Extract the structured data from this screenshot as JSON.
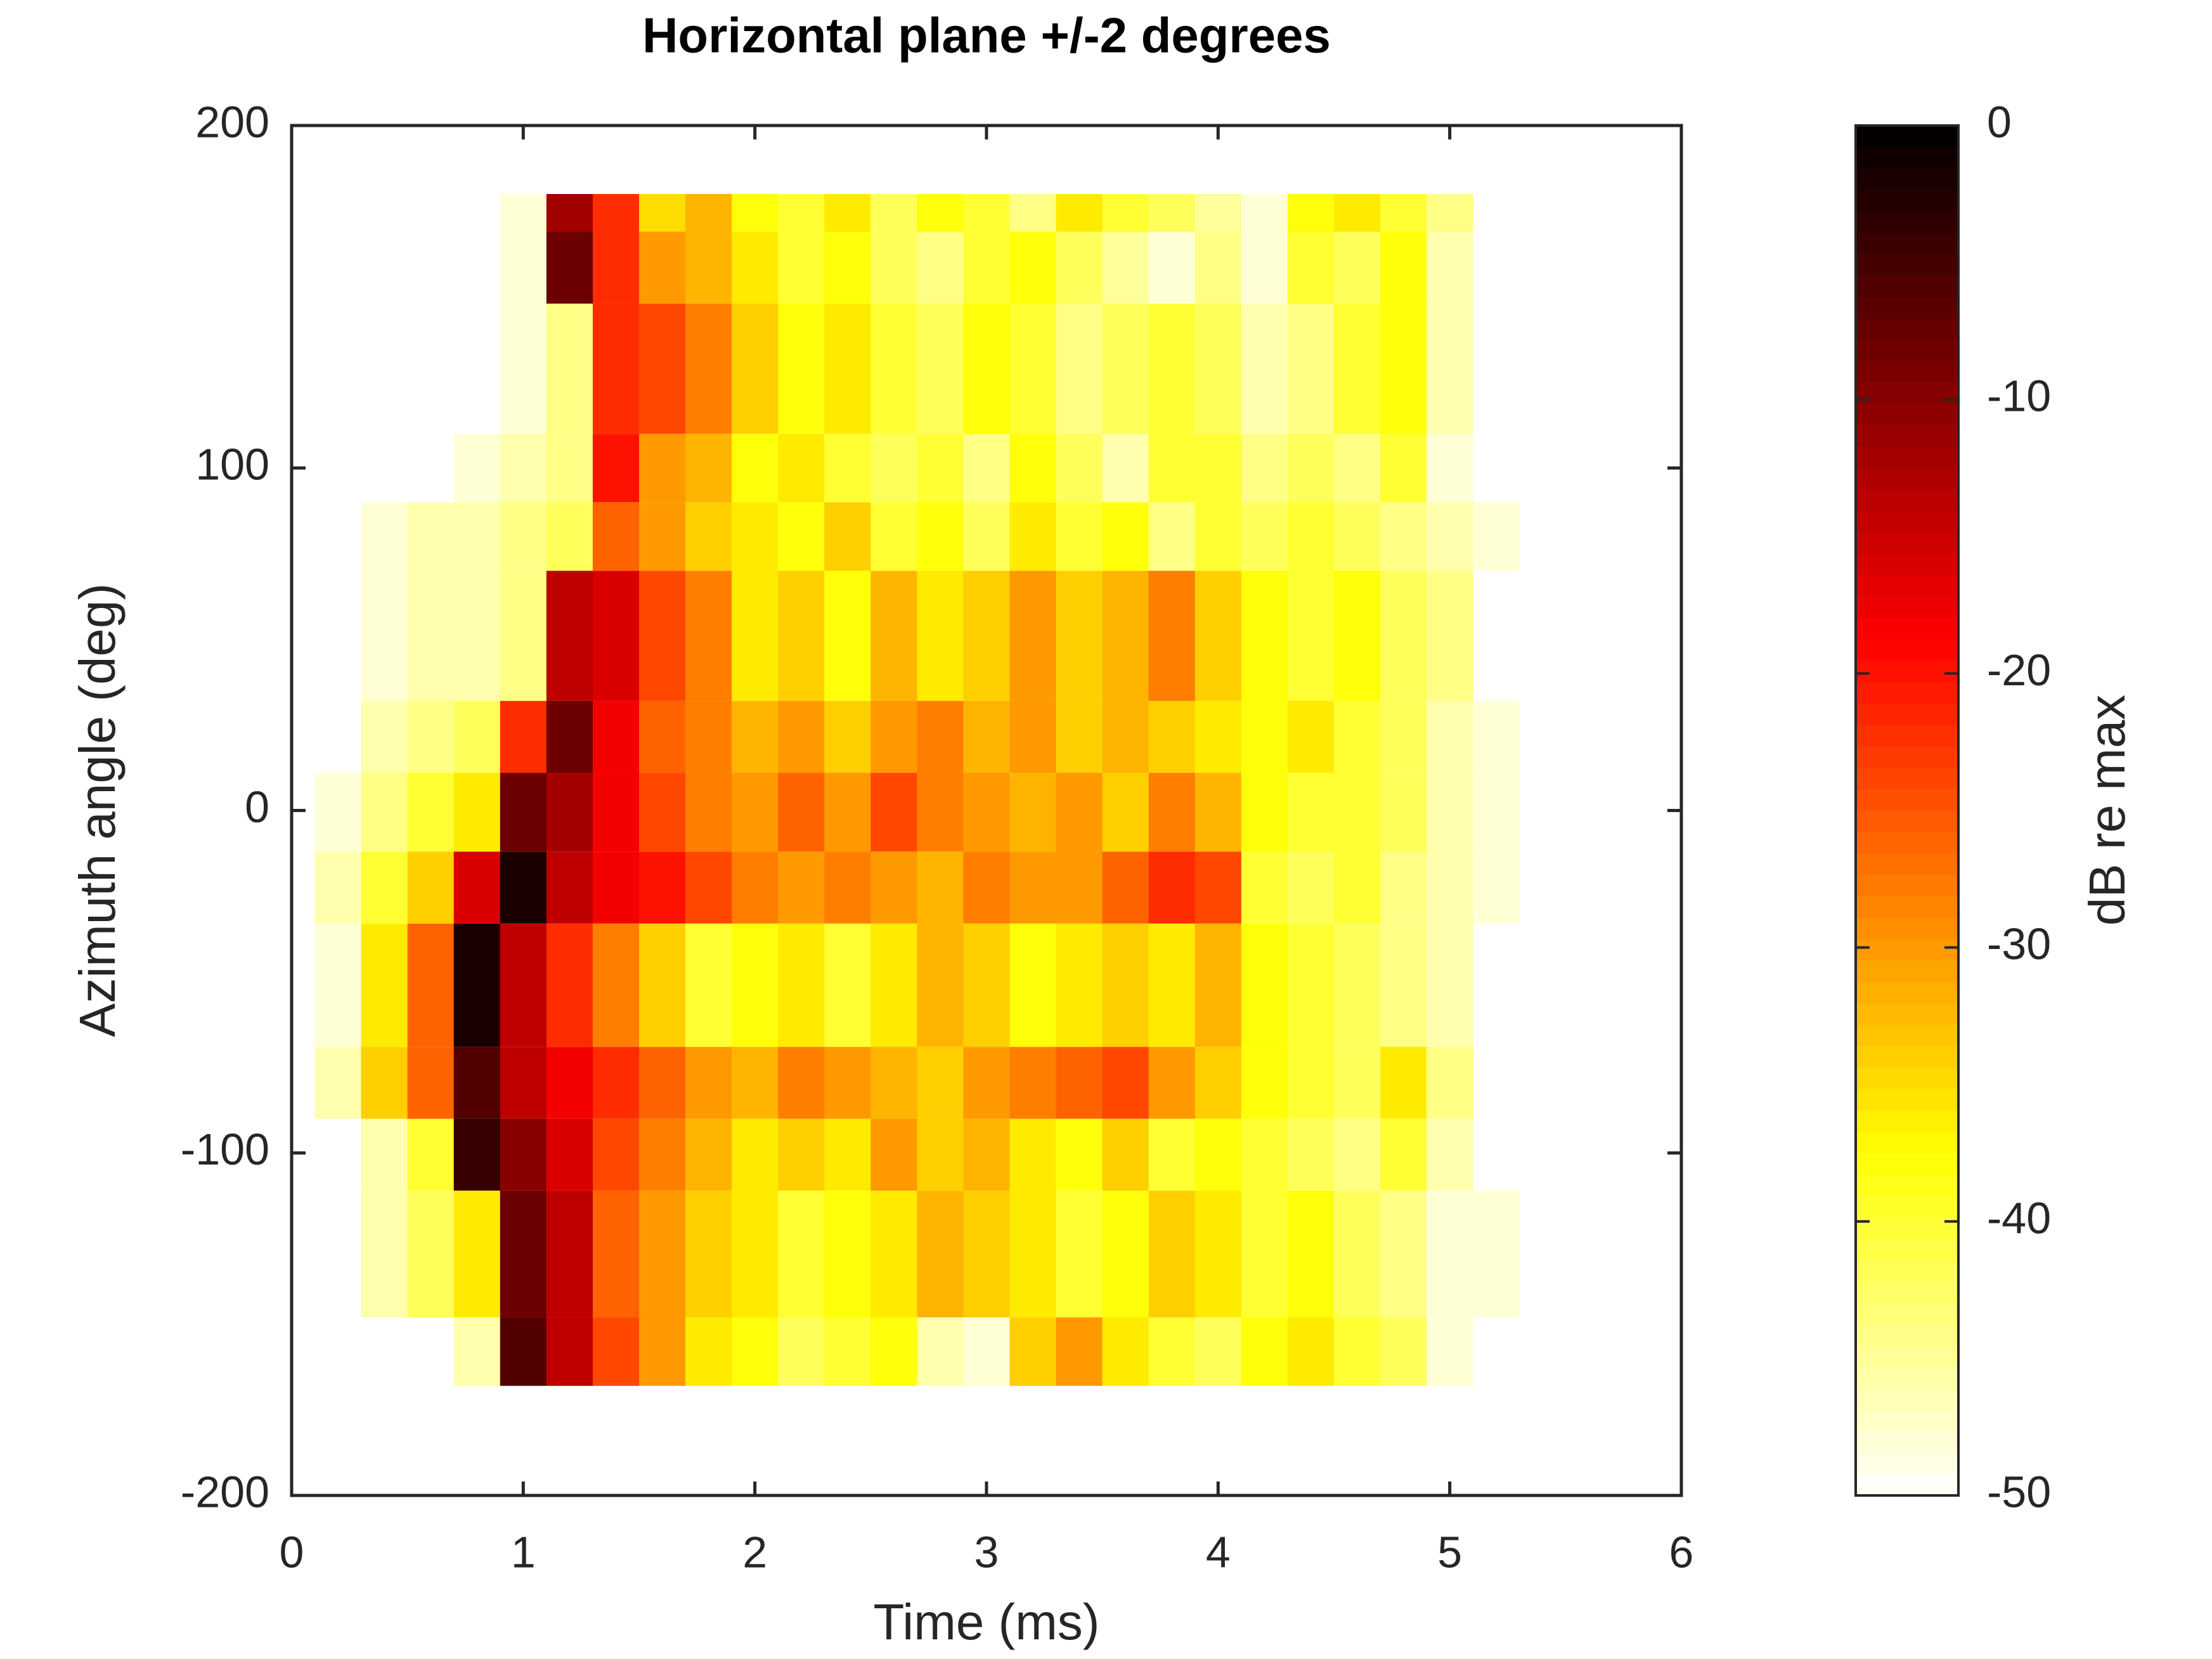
{
  "chart_data": {
    "type": "heatmap",
    "title": "Horizontal plane +/-2 degrees",
    "xlabel": "Time (ms)",
    "ylabel": "Azimuth angle (deg)",
    "colorbar_label": "dB re max",
    "colormap": "hot",
    "xlim": [
      0,
      6
    ],
    "xticks": [
      0,
      1,
      2,
      3,
      4,
      5,
      6
    ],
    "ylim": [
      -200,
      200
    ],
    "yticks": [
      -200,
      -100,
      0,
      100,
      200
    ],
    "clim": [
      -50,
      0
    ],
    "cticks": [
      0,
      -10,
      -20,
      -30,
      -40,
      -50
    ],
    "x_edges": [
      0.1,
      0.3,
      0.5,
      0.7,
      0.9,
      1.1,
      1.3,
      1.5,
      1.7,
      1.9,
      2.1,
      2.3,
      2.5,
      2.7,
      2.9,
      3.1,
      3.3,
      3.5,
      3.7,
      3.9,
      4.1,
      4.3,
      4.5,
      4.7,
      4.9,
      5.1,
      5.3
    ],
    "y_edges": [
      -168,
      -148,
      -111,
      -90,
      -69,
      -33,
      -12,
      11,
      32,
      70,
      90,
      110,
      148,
      169,
      180
    ],
    "values": [
      [
        null,
        null,
        null,
        -46,
        -6,
        -14,
        -24,
        -30,
        -36,
        -38,
        -42,
        -40,
        -38,
        -46,
        -48,
        -34,
        -30,
        -36,
        -40,
        -42,
        -38,
        -36,
        -40,
        -42,
        -48,
        null
      ],
      [
        null,
        -46,
        -42,
        -36,
        -8,
        -14,
        -26,
        -30,
        -34,
        -36,
        -40,
        -38,
        -36,
        -32,
        -34,
        -36,
        -40,
        -38,
        -34,
        -36,
        -40,
        -38,
        -42,
        -44,
        -48,
        -48
      ],
      [
        null,
        -46,
        -40,
        -4,
        -10,
        -16,
        -24,
        -28,
        -32,
        -36,
        -34,
        -36,
        -30,
        -34,
        -32,
        -36,
        -38,
        -34,
        -40,
        -38,
        -40,
        -42,
        -44,
        -40,
        -46,
        null
      ],
      [
        -46,
        -34,
        -26,
        -6,
        -14,
        -18,
        -22,
        -26,
        -30,
        -32,
        -28,
        -30,
        -32,
        -34,
        -30,
        -28,
        -26,
        -24,
        -30,
        -34,
        -38,
        -40,
        -42,
        -36,
        -44,
        null
      ],
      [
        -48,
        -36,
        -26,
        -2,
        -14,
        -22,
        -28,
        -34,
        -40,
        -38,
        -36,
        -40,
        -36,
        -32,
        -34,
        -38,
        -36,
        -34,
        -36,
        -32,
        -38,
        -40,
        -42,
        -44,
        -46,
        null
      ],
      [
        -46,
        -40,
        -34,
        -16,
        -2,
        -14,
        -18,
        -20,
        -24,
        -28,
        -30,
        -28,
        -30,
        -32,
        -28,
        -30,
        -30,
        -26,
        -22,
        -24,
        -40,
        -42,
        -40,
        -44,
        -46,
        -48
      ],
      [
        -48,
        -44,
        -40,
        -36,
        -8,
        -12,
        -18,
        -24,
        -28,
        -30,
        -26,
        -30,
        -24,
        -28,
        -30,
        -32,
        -30,
        -34,
        -28,
        -32,
        -38,
        -40,
        -40,
        -42,
        -46,
        -48
      ],
      [
        null,
        -46,
        -44,
        -42,
        -22,
        -8,
        -18,
        -26,
        -28,
        -32,
        -30,
        -34,
        -30,
        -28,
        -32,
        -30,
        -34,
        -32,
        -34,
        -36,
        -38,
        -36,
        -40,
        -42,
        -46,
        -48
      ],
      [
        null,
        -48,
        -46,
        -46,
        -44,
        -14,
        -16,
        -24,
        -28,
        -36,
        -34,
        -38,
        -32,
        -36,
        -34,
        -30,
        -34,
        -32,
        -28,
        -34,
        -38,
        -40,
        -38,
        -42,
        -44,
        null
      ],
      [
        null,
        -48,
        -46,
        -46,
        -44,
        -42,
        -26,
        -30,
        -34,
        -36,
        -38,
        -34,
        -40,
        -38,
        -42,
        -36,
        -40,
        -38,
        -44,
        -40,
        -42,
        -40,
        -42,
        -44,
        -46,
        -48
      ],
      [
        null,
        null,
        null,
        -48,
        -46,
        -44,
        -20,
        -30,
        -32,
        -38,
        -36,
        -40,
        -42,
        -40,
        -44,
        -38,
        -42,
        -46,
        -40,
        -40,
        -44,
        -42,
        -44,
        -40,
        -48,
        null
      ],
      [
        null,
        null,
        null,
        null,
        -48,
        -44,
        -22,
        -24,
        -28,
        -34,
        -38,
        -36,
        -40,
        -42,
        -38,
        -40,
        -44,
        -42,
        -40,
        -42,
        -46,
        -44,
        -40,
        -38,
        -46,
        null
      ],
      [
        null,
        null,
        null,
        null,
        -48,
        -8,
        -22,
        -30,
        -32,
        -36,
        -40,
        -38,
        -42,
        -44,
        -40,
        -38,
        -42,
        -45,
        -48,
        -44,
        -48,
        -40,
        -42,
        -38,
        -46,
        null
      ],
      [
        null,
        null,
        null,
        null,
        -48,
        -12,
        -22,
        -35,
        -32,
        -38,
        -40,
        -36,
        -42,
        -38,
        -40,
        -44,
        -36,
        -40,
        -42,
        -45,
        -48,
        -38,
        -36,
        -40,
        -44,
        null
      ]
    ]
  }
}
